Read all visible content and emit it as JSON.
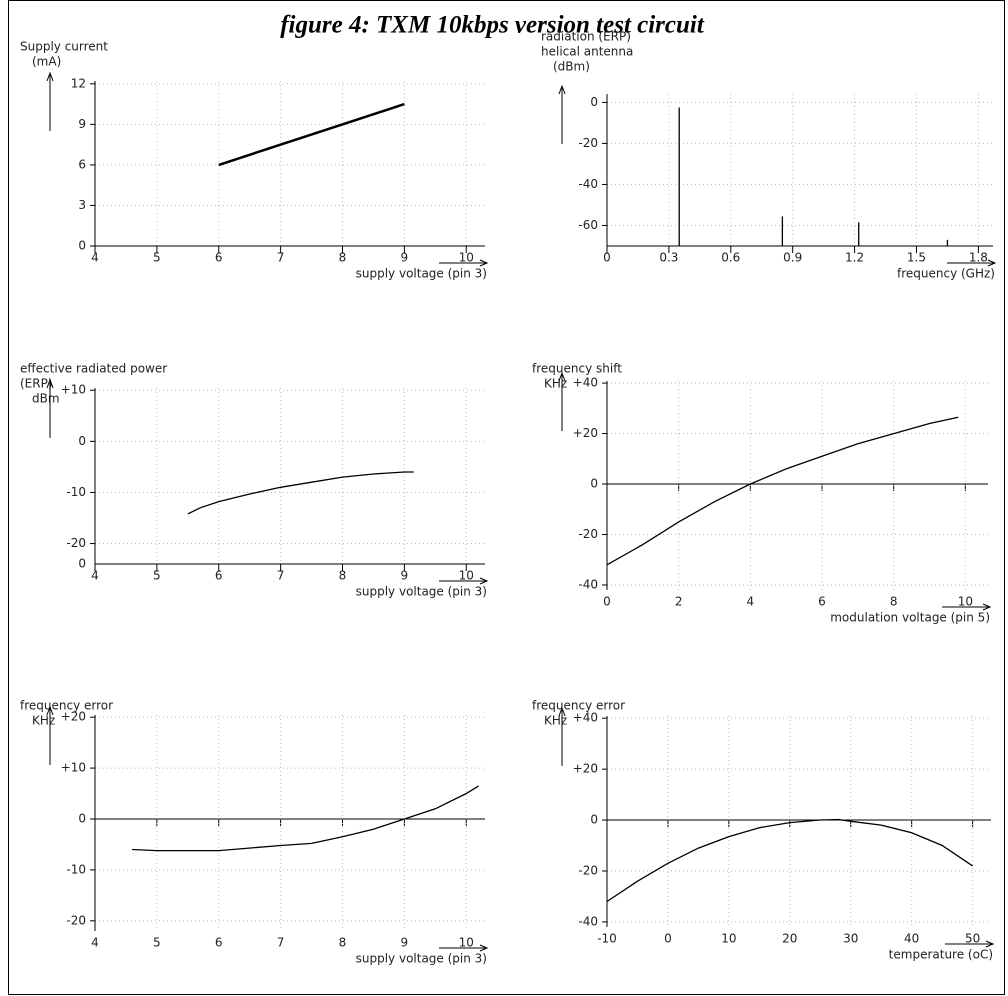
{
  "title": "figure 4: TXM 10kbps version test circuit",
  "chart_data": [
    {
      "type": "line",
      "ylabel": [
        "Supply current",
        "(mA)"
      ],
      "xlabel": "supply voltage (pin 3)",
      "x": [
        6,
        9
      ],
      "values": [
        6,
        10.5
      ],
      "color": "#000000",
      "xlim": [
        4,
        10.4
      ],
      "ylim": [
        0,
        12.8
      ],
      "xticks": [
        4,
        5,
        6,
        7,
        8,
        9,
        10
      ],
      "yticks": [
        0,
        3,
        6,
        9,
        12
      ],
      "grid": true,
      "zero_axis": false
    },
    {
      "type": "stem",
      "ylabel": [
        "radiation (ERP)",
        "helical antenna",
        "(dBm)"
      ],
      "xlabel": "frequency (GHz)",
      "x": [
        0.35,
        0.85,
        1.22,
        1.65
      ],
      "values": [
        -2.5,
        -55.6,
        -58.5,
        -67
      ],
      "color": "#000000",
      "xlim": [
        0,
        1.9
      ],
      "ylim": [
        -70,
        8
      ],
      "xticks": [
        0,
        0.3,
        0.6,
        0.9,
        1.2,
        1.5,
        1.8
      ],
      "yticks": [
        0,
        -20,
        -40,
        -60
      ],
      "grid": true,
      "zero_axis": false
    },
    {
      "type": "line",
      "ylabel": [
        "effective radiated power",
        "(ERP)",
        "dBm"
      ],
      "xlabel": "supply voltage (pin 3)",
      "x": [
        5.5,
        5.7,
        6,
        6.5,
        7,
        7.5,
        8,
        8.5,
        9,
        9.15
      ],
      "values": [
        -14.2,
        -13,
        -11.8,
        -10.3,
        -9,
        -8,
        -7,
        -6.4,
        -6,
        -6
      ],
      "color": "#000000",
      "xlim": [
        4,
        10.4
      ],
      "ylim": [
        -24,
        12
      ],
      "xticks": [
        4,
        5,
        6,
        7,
        8,
        9,
        10
      ],
      "yticks": [
        {
          "value": 10,
          "label": "+10"
        },
        0,
        -10,
        -20
      ],
      "axis_break_label": "0",
      "grid": true,
      "zero_axis": false
    },
    {
      "type": "line",
      "ylabel": [
        "frequency shift",
        "KHz"
      ],
      "xlabel": "modulation voltage (pin 5)",
      "x": [
        0,
        1,
        2,
        3,
        4,
        5,
        6,
        7,
        8,
        9,
        9.8
      ],
      "values": [
        -32,
        -24,
        -15,
        -7,
        0,
        6,
        11,
        16,
        20,
        24,
        26.5
      ],
      "color": "#000000",
      "xlim": [
        0,
        10.8
      ],
      "ylim": [
        -42,
        44
      ],
      "xticks": [
        0,
        2,
        4,
        6,
        8,
        10
      ],
      "yticks": [
        {
          "value": 40,
          "label": "+40"
        },
        {
          "value": 20,
          "label": "+20"
        },
        0,
        -20,
        -40
      ],
      "grid": true,
      "zero_axis": true
    },
    {
      "type": "line",
      "ylabel": [
        "frequency error",
        "KHz"
      ],
      "xlabel": "supply voltage (pin 3)",
      "x": [
        4.6,
        5,
        6,
        7,
        7.5,
        8,
        8.5,
        9,
        9.5,
        10,
        10.2
      ],
      "values": [
        -6,
        -6.2,
        -6.2,
        -5.2,
        -4.8,
        -3.5,
        -2,
        0,
        2,
        5,
        6.5
      ],
      "color": "#000000",
      "xlim": [
        4,
        10.4
      ],
      "ylim": [
        -22,
        22
      ],
      "xticks": [
        4,
        5,
        6,
        7,
        8,
        9,
        10
      ],
      "yticks": [
        {
          "value": 20,
          "label": "+20"
        },
        {
          "value": 10,
          "label": "+10"
        },
        0,
        -10,
        -20
      ],
      "grid": true,
      "zero_axis": true
    },
    {
      "type": "line",
      "ylabel": [
        "frequency error",
        "KHz"
      ],
      "xlabel": "temperature (oC)",
      "x": [
        -10,
        -5,
        0,
        5,
        10,
        15,
        20,
        25,
        28,
        30,
        35,
        40,
        45,
        50
      ],
      "values": [
        -32,
        -24,
        -17,
        -11,
        -6.5,
        -3,
        -1,
        0,
        0.2,
        -0.5,
        -2,
        -5,
        -10,
        -18
      ],
      "color": "#000000",
      "xlim": [
        -10,
        54
      ],
      "ylim": [
        -42,
        44
      ],
      "xticks": [
        -10,
        0,
        10,
        20,
        30,
        40,
        50
      ],
      "yticks": [
        {
          "value": 40,
          "label": "+40"
        },
        {
          "value": 20,
          "label": "+20"
        },
        0,
        -20,
        -40
      ],
      "grid": true,
      "zero_axis": true
    }
  ]
}
